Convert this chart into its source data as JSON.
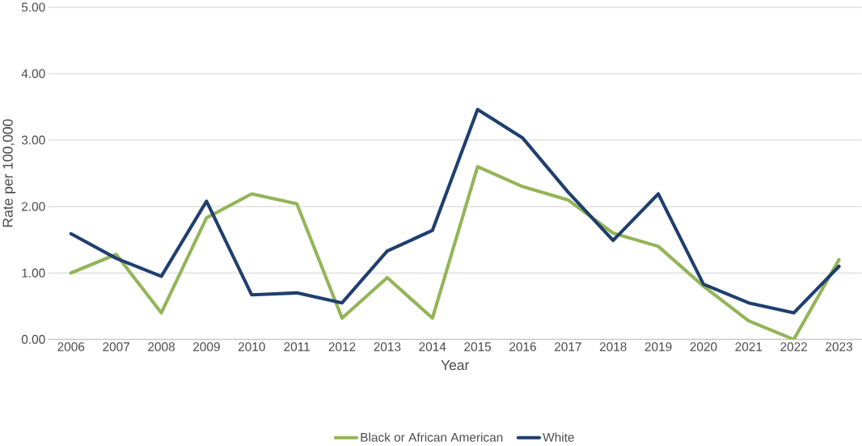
{
  "chart_data": {
    "type": "line",
    "xlabel": "Year",
    "ylabel": "Rate per 100,000",
    "categories": [
      "2006",
      "2007",
      "2008",
      "2009",
      "2010",
      "2011",
      "2012",
      "2013",
      "2014",
      "2015",
      "2016",
      "2017",
      "2018",
      "2019",
      "2020",
      "2021",
      "2022",
      "2023"
    ],
    "series": [
      {
        "name": "Black or African American",
        "color": "#92b557",
        "values": [
          1.0,
          1.28,
          0.4,
          1.83,
          2.19,
          2.04,
          0.32,
          0.93,
          0.32,
          2.6,
          2.3,
          2.1,
          1.6,
          1.4,
          0.8,
          0.28,
          0.0,
          1.2
        ]
      },
      {
        "name": "White",
        "color": "#1f3f6e",
        "values": [
          1.59,
          1.22,
          0.95,
          2.08,
          0.67,
          0.7,
          0.55,
          1.33,
          1.64,
          3.46,
          3.03,
          2.22,
          1.49,
          2.19,
          0.83,
          0.55,
          0.4,
          1.1
        ]
      }
    ],
    "ylim": [
      0,
      5
    ],
    "yticks": [
      {
        "value": 0,
        "label": "0.00"
      },
      {
        "value": 1,
        "label": "1.00"
      },
      {
        "value": 2,
        "label": "2.00"
      },
      {
        "value": 3,
        "label": "3.00"
      },
      {
        "value": 4,
        "label": "4.00"
      },
      {
        "value": 5,
        "label": "5.00"
      }
    ],
    "grid": "y",
    "legend": "bottom",
    "marker": "none",
    "line_style": "solid"
  }
}
